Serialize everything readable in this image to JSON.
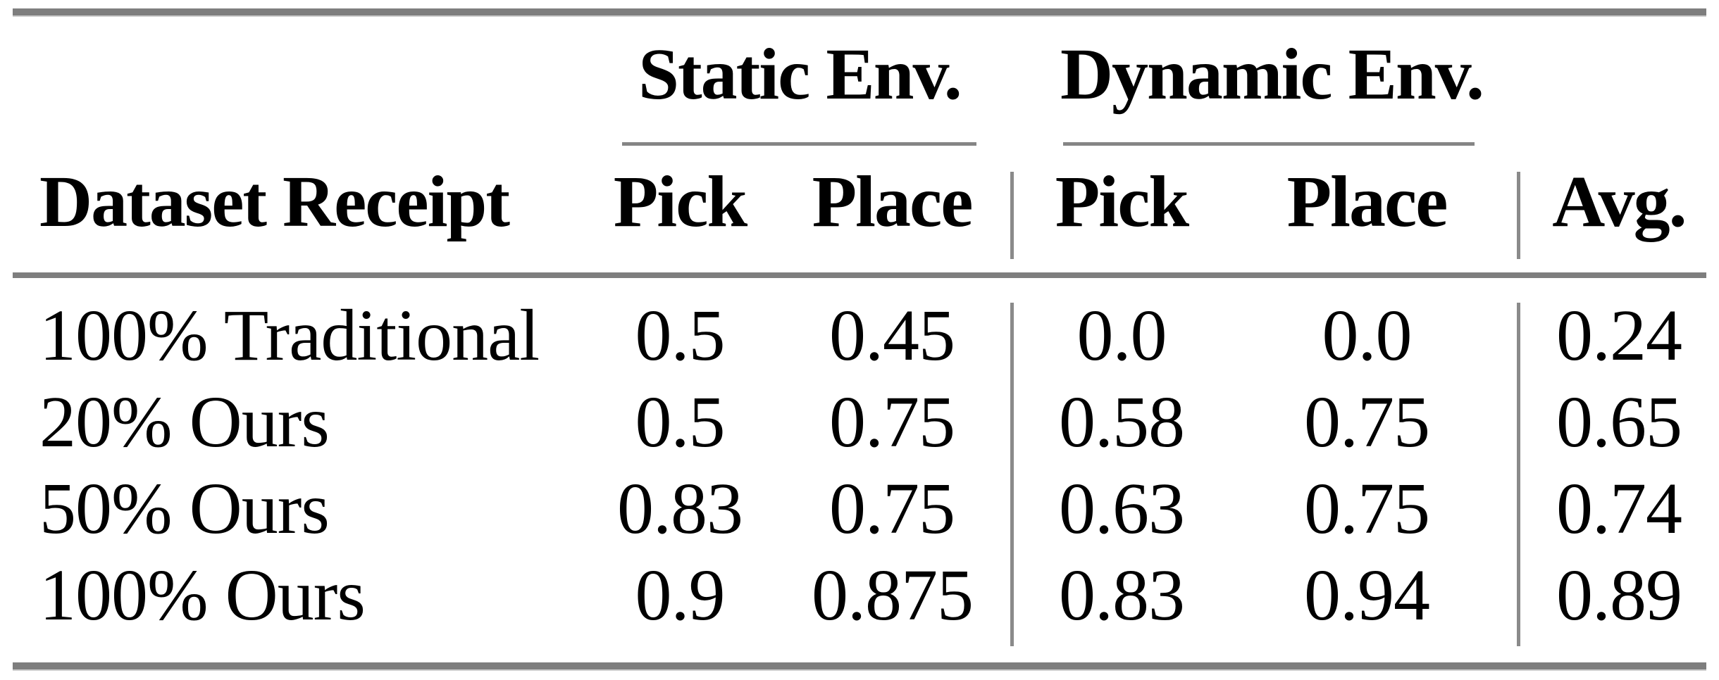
{
  "table": {
    "group_headers": {
      "static": "Static Env.",
      "dynamic": "Dynamic Env."
    },
    "column_headers": {
      "dataset": "Dataset Receipt",
      "static_pick": "Pick",
      "static_place": "Place",
      "dynamic_pick": "Pick",
      "dynamic_place": "Place",
      "avg": "Avg."
    },
    "rows": [
      {
        "dataset": "100% Traditional",
        "static_pick": "0.5",
        "static_place": "0.45",
        "dynamic_pick": "0.0",
        "dynamic_place": "0.0",
        "avg": "0.24"
      },
      {
        "dataset": "20% Ours",
        "static_pick": "0.5",
        "static_place": "0.75",
        "dynamic_pick": "0.58",
        "dynamic_place": "0.75",
        "avg": "0.65"
      },
      {
        "dataset": "50% Ours",
        "static_pick": "0.83",
        "static_place": "0.75",
        "dynamic_pick": "0.63",
        "dynamic_place": "0.75",
        "avg": "0.74"
      },
      {
        "dataset": "100% Ours",
        "static_pick": "0.9",
        "static_place": "0.875",
        "dynamic_pick": "0.83",
        "dynamic_place": "0.94",
        "avg": "0.89"
      }
    ],
    "colors": {
      "rule_gray": "#7e7e7e",
      "text": "#000000",
      "background": "#ffffff"
    }
  }
}
